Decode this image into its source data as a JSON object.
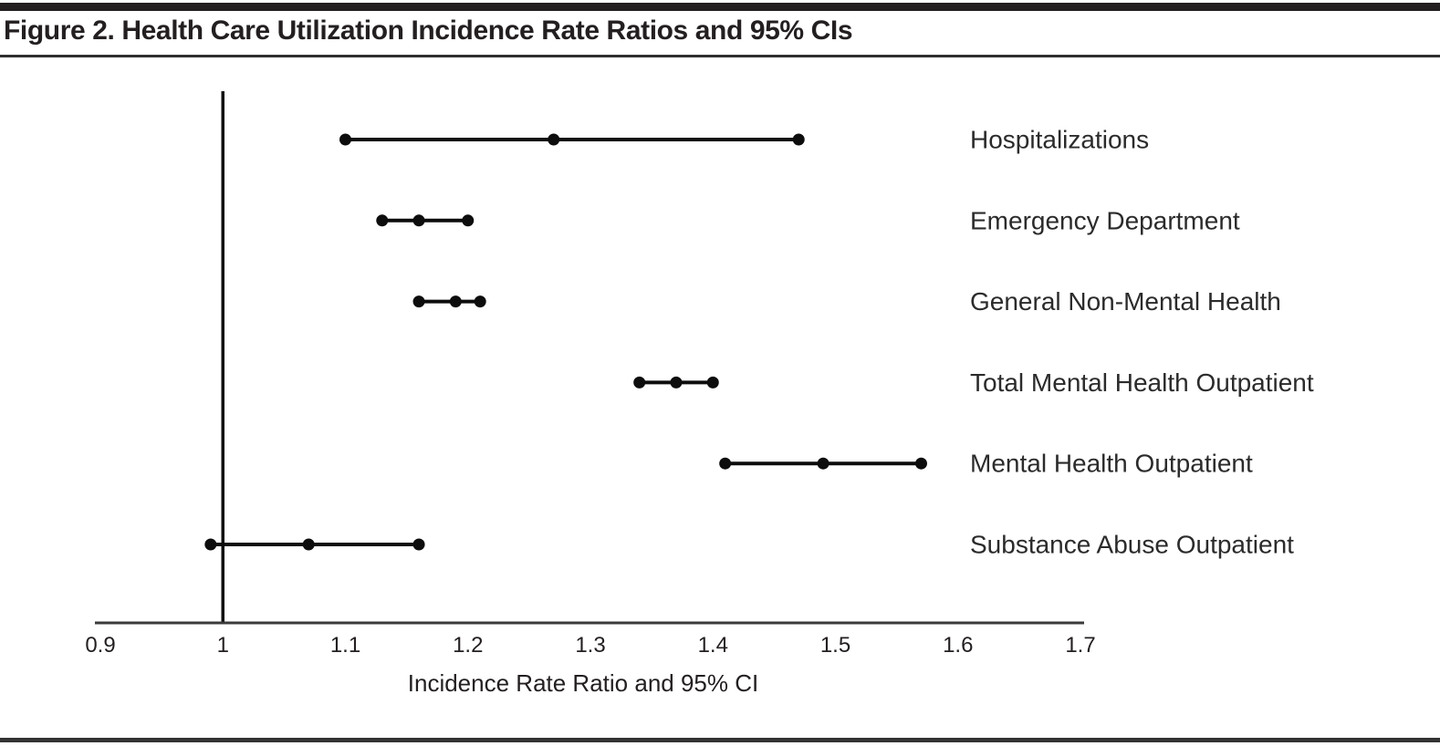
{
  "figure": {
    "title": "Figure 2. Health Care Utilization Incidence Rate Ratios and 95% CIs"
  },
  "chart_data": {
    "type": "scatter",
    "variant": "forest-plot",
    "title": "Figure 2. Health Care Utilization Incidence Rate Ratios and 95% CIs",
    "xlabel": "Incidence Rate Ratio and 95% CI",
    "ylabel": "",
    "xlim": [
      0.9,
      1.7
    ],
    "xtick_values": [
      0.9,
      1.0,
      1.1,
      1.2,
      1.3,
      1.4,
      1.5,
      1.6,
      1.7
    ],
    "xtick_labels": [
      "0.9",
      "1",
      "1.1",
      "1.2",
      "1.3",
      "1.4",
      "1.5",
      "1.6",
      "1.7"
    ],
    "reference_line_x": 1.0,
    "grid": false,
    "legend": "none",
    "marker_color": "#0d0d0d",
    "axis_color": "#3a3a3a",
    "text_color": "#231f20",
    "series": [
      {
        "name": "Hospitalizations",
        "estimate": 1.27,
        "ci_low": 1.1,
        "ci_high": 1.47
      },
      {
        "name": "Emergency Department",
        "estimate": 1.16,
        "ci_low": 1.13,
        "ci_high": 1.2
      },
      {
        "name": "General Non-Mental Health",
        "estimate": 1.19,
        "ci_low": 1.16,
        "ci_high": 1.21
      },
      {
        "name": "Total Mental Health Outpatient",
        "estimate": 1.37,
        "ci_low": 1.34,
        "ci_high": 1.4
      },
      {
        "name": "Mental Health Outpatient",
        "estimate": 1.49,
        "ci_low": 1.41,
        "ci_high": 1.57
      },
      {
        "name": "Substance Abuse Outpatient",
        "estimate": 1.07,
        "ci_low": 0.99,
        "ci_high": 1.16
      }
    ]
  }
}
